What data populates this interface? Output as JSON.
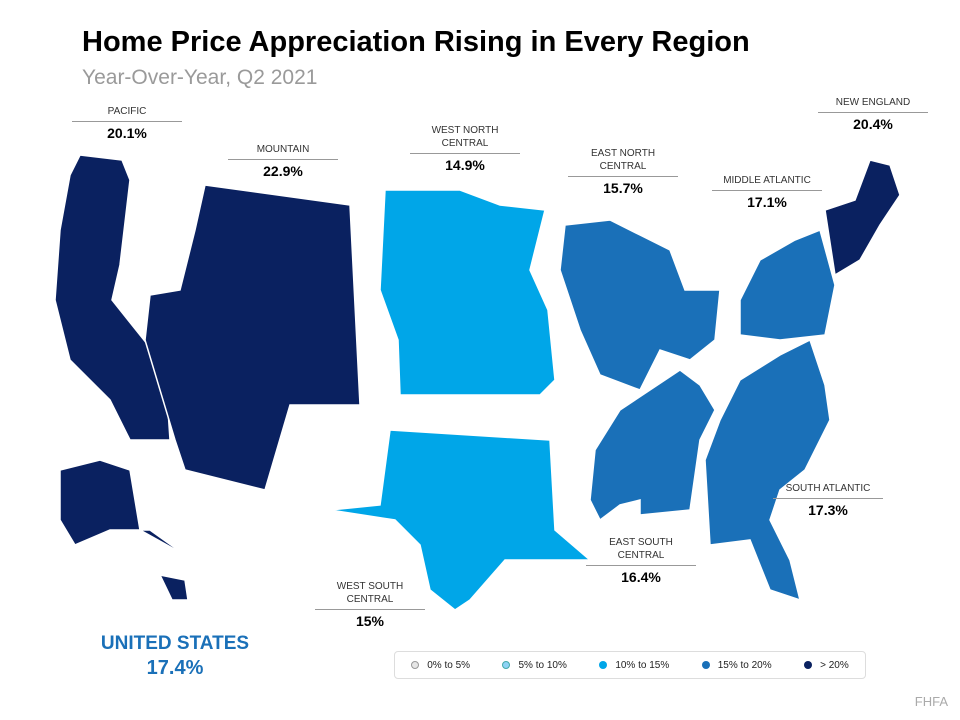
{
  "title": "Home Price Appreciation Rising in Every Region",
  "subtitle": "Year-Over-Year, Q2 2021",
  "colors": {
    "gt20": "#0a2160",
    "15to20": "#1a70b8",
    "10to15": "#00a6e8",
    "5to10": "#8fd3f5",
    "0to5": "#e6e6e6"
  },
  "regions": [
    {
      "name": "PACIFIC",
      "value": "20.1%",
      "bucket": "gt20"
    },
    {
      "name": "MOUNTAIN",
      "value": "22.9%",
      "bucket": "gt20"
    },
    {
      "name": "WEST NORTH CENTRAL",
      "value": "14.9%",
      "bucket": "10to15"
    },
    {
      "name": "EAST NORTH CENTRAL",
      "value": "15.7%",
      "bucket": "15to20"
    },
    {
      "name": "MIDDLE ATLANTIC",
      "value": "17.1%",
      "bucket": "15to20"
    },
    {
      "name": "NEW ENGLAND",
      "value": "20.4%",
      "bucket": "gt20"
    },
    {
      "name": "SOUTH ATLANTIC",
      "value": "17.3%",
      "bucket": "15to20"
    },
    {
      "name": "EAST SOUTH CENTRAL",
      "value": "16.4%",
      "bucket": "15to20"
    },
    {
      "name": "WEST SOUTH CENTRAL",
      "value": "15%",
      "bucket": "10to15"
    }
  ],
  "national": {
    "name": "UNITED STATES",
    "value": "17.4%"
  },
  "legend": [
    "0% to 5%",
    "5% to 10%",
    "10% to 15%",
    "15% to 20%",
    "> 20%"
  ],
  "source": "FHFA"
}
